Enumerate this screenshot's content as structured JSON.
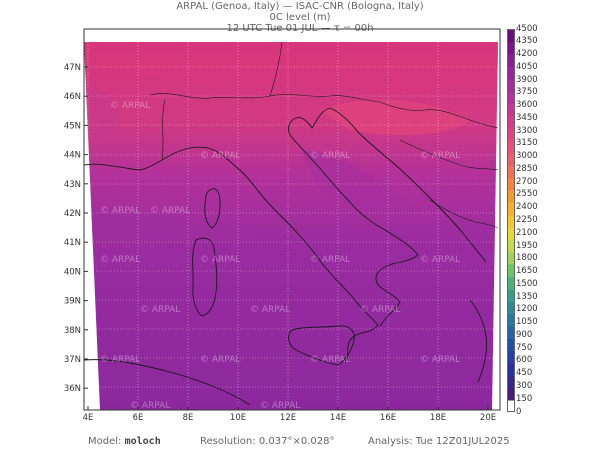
{
  "header": {
    "line1": "ARPAL (Genoa, Italy)  —  ISAC-CNR (Bologna, Italy)",
    "line2": "0C level (m)",
    "line3": "12 UTC Tue 01 JUL  —  τ = 00h"
  },
  "map": {
    "lon_labels": [
      "4E",
      "6E",
      "8E",
      "10E",
      "12E",
      "14E",
      "16E",
      "18E",
      "20E"
    ],
    "lat_labels": [
      "47N",
      "46N",
      "45N",
      "44N",
      "43N",
      "42N",
      "41N",
      "40N",
      "39N",
      "38N",
      "37N",
      "36N"
    ],
    "watermark": "© ARPAL",
    "colors": {
      "north_high": "#d93a7a",
      "alps_light": "#e0487a",
      "mid": "#b0349a",
      "south": "#8e2aa0",
      "frame": "#333333",
      "coast": "#1a1a1a"
    }
  },
  "colorbar": {
    "labels": [
      "4500",
      "4350",
      "4200",
      "4050",
      "3900",
      "3750",
      "3600",
      "3450",
      "3300",
      "3150",
      "3000",
      "2850",
      "2700",
      "2550",
      "2400",
      "2250",
      "2100",
      "1950",
      "1800",
      "1650",
      "1500",
      "1350",
      "1200",
      "1050",
      "900",
      "750",
      "600",
      "450",
      "300",
      "150",
      "0"
    ],
    "colors": [
      "#6a0f7a",
      "#7a1588",
      "#8a1c96",
      "#9a239c",
      "#a82a9c",
      "#b8309a",
      "#c83596",
      "#d83a8e",
      "#e24486",
      "#e8507c",
      "#ee5f6c",
      "#f27055",
      "#f5843f",
      "#f79a30",
      "#f7b02c",
      "#f5c530",
      "#e9d63a",
      "#c8d84a",
      "#9fd25a",
      "#72c46a",
      "#4bb27c",
      "#35a08a",
      "#2b8c96",
      "#26789e",
      "#2463a4",
      "#2250a8",
      "#243faa",
      "#2a30a2",
      "#3a2590",
      "#4a1c7a",
      "#ffffff"
    ]
  },
  "footer": {
    "model_label": "Model:",
    "model_value": "moloch",
    "resolution_label": "Resolution:",
    "resolution_value": "0.037°×0.028°",
    "analysis_label": "Analysis:",
    "analysis_value": "Tue 12Z01JUL2025"
  }
}
